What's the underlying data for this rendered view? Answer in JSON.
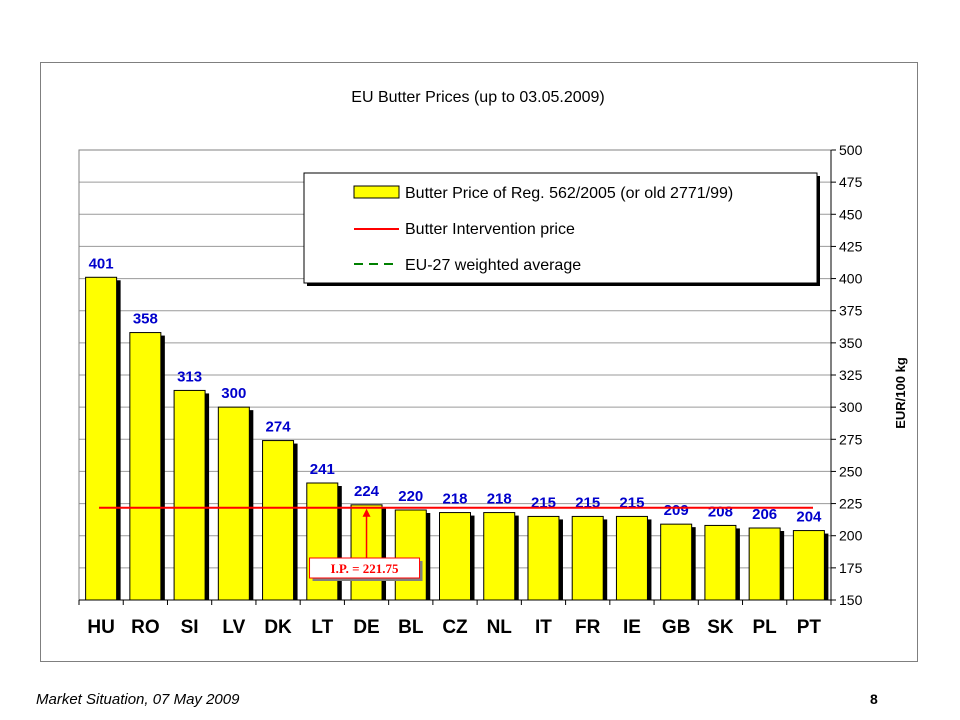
{
  "chart_data": {
    "type": "bar",
    "title": "EU Butter Prices  (up to 03.05.2009)",
    "ylabel": "EUR/100 kg",
    "ylim": [
      150,
      500
    ],
    "yticks": [
      150,
      175,
      200,
      225,
      250,
      275,
      300,
      325,
      350,
      375,
      400,
      425,
      450,
      475,
      500
    ],
    "grid": true,
    "legend_position": "top-right",
    "categories": [
      "HU",
      "RO",
      "SI",
      "LV",
      "DK",
      "LT",
      "DE",
      "BL",
      "CZ",
      "NL",
      "IT",
      "FR",
      "IE",
      "GB",
      "SK",
      "PL",
      "PT"
    ],
    "series": [
      {
        "name": "Butter Price of Reg. 562/2005 (or old 2771/99)",
        "values": [
          401,
          358,
          313,
          300,
          274,
          241,
          224,
          220,
          218,
          218,
          215,
          215,
          215,
          209,
          208,
          206,
          204
        ],
        "color": "#ffff00"
      }
    ],
    "reference_lines": [
      {
        "name": "Butter Intervention price",
        "value": 221.75,
        "color": "#ff0000",
        "style": "solid"
      }
    ],
    "legend_extra": [
      {
        "name": "EU-27 weighted average",
        "color": "#008000",
        "style": "dashed"
      }
    ],
    "annotation": {
      "text": "I.P. = 221.75",
      "color": "#ff0000",
      "points_to": "DE"
    },
    "colors": {
      "data_label": "#0000cc",
      "bar_fill": "#ffff00",
      "bar_shadow": "#000000"
    }
  },
  "footer": {
    "left": "Market Situation, 07 May 2009",
    "page": "8"
  }
}
